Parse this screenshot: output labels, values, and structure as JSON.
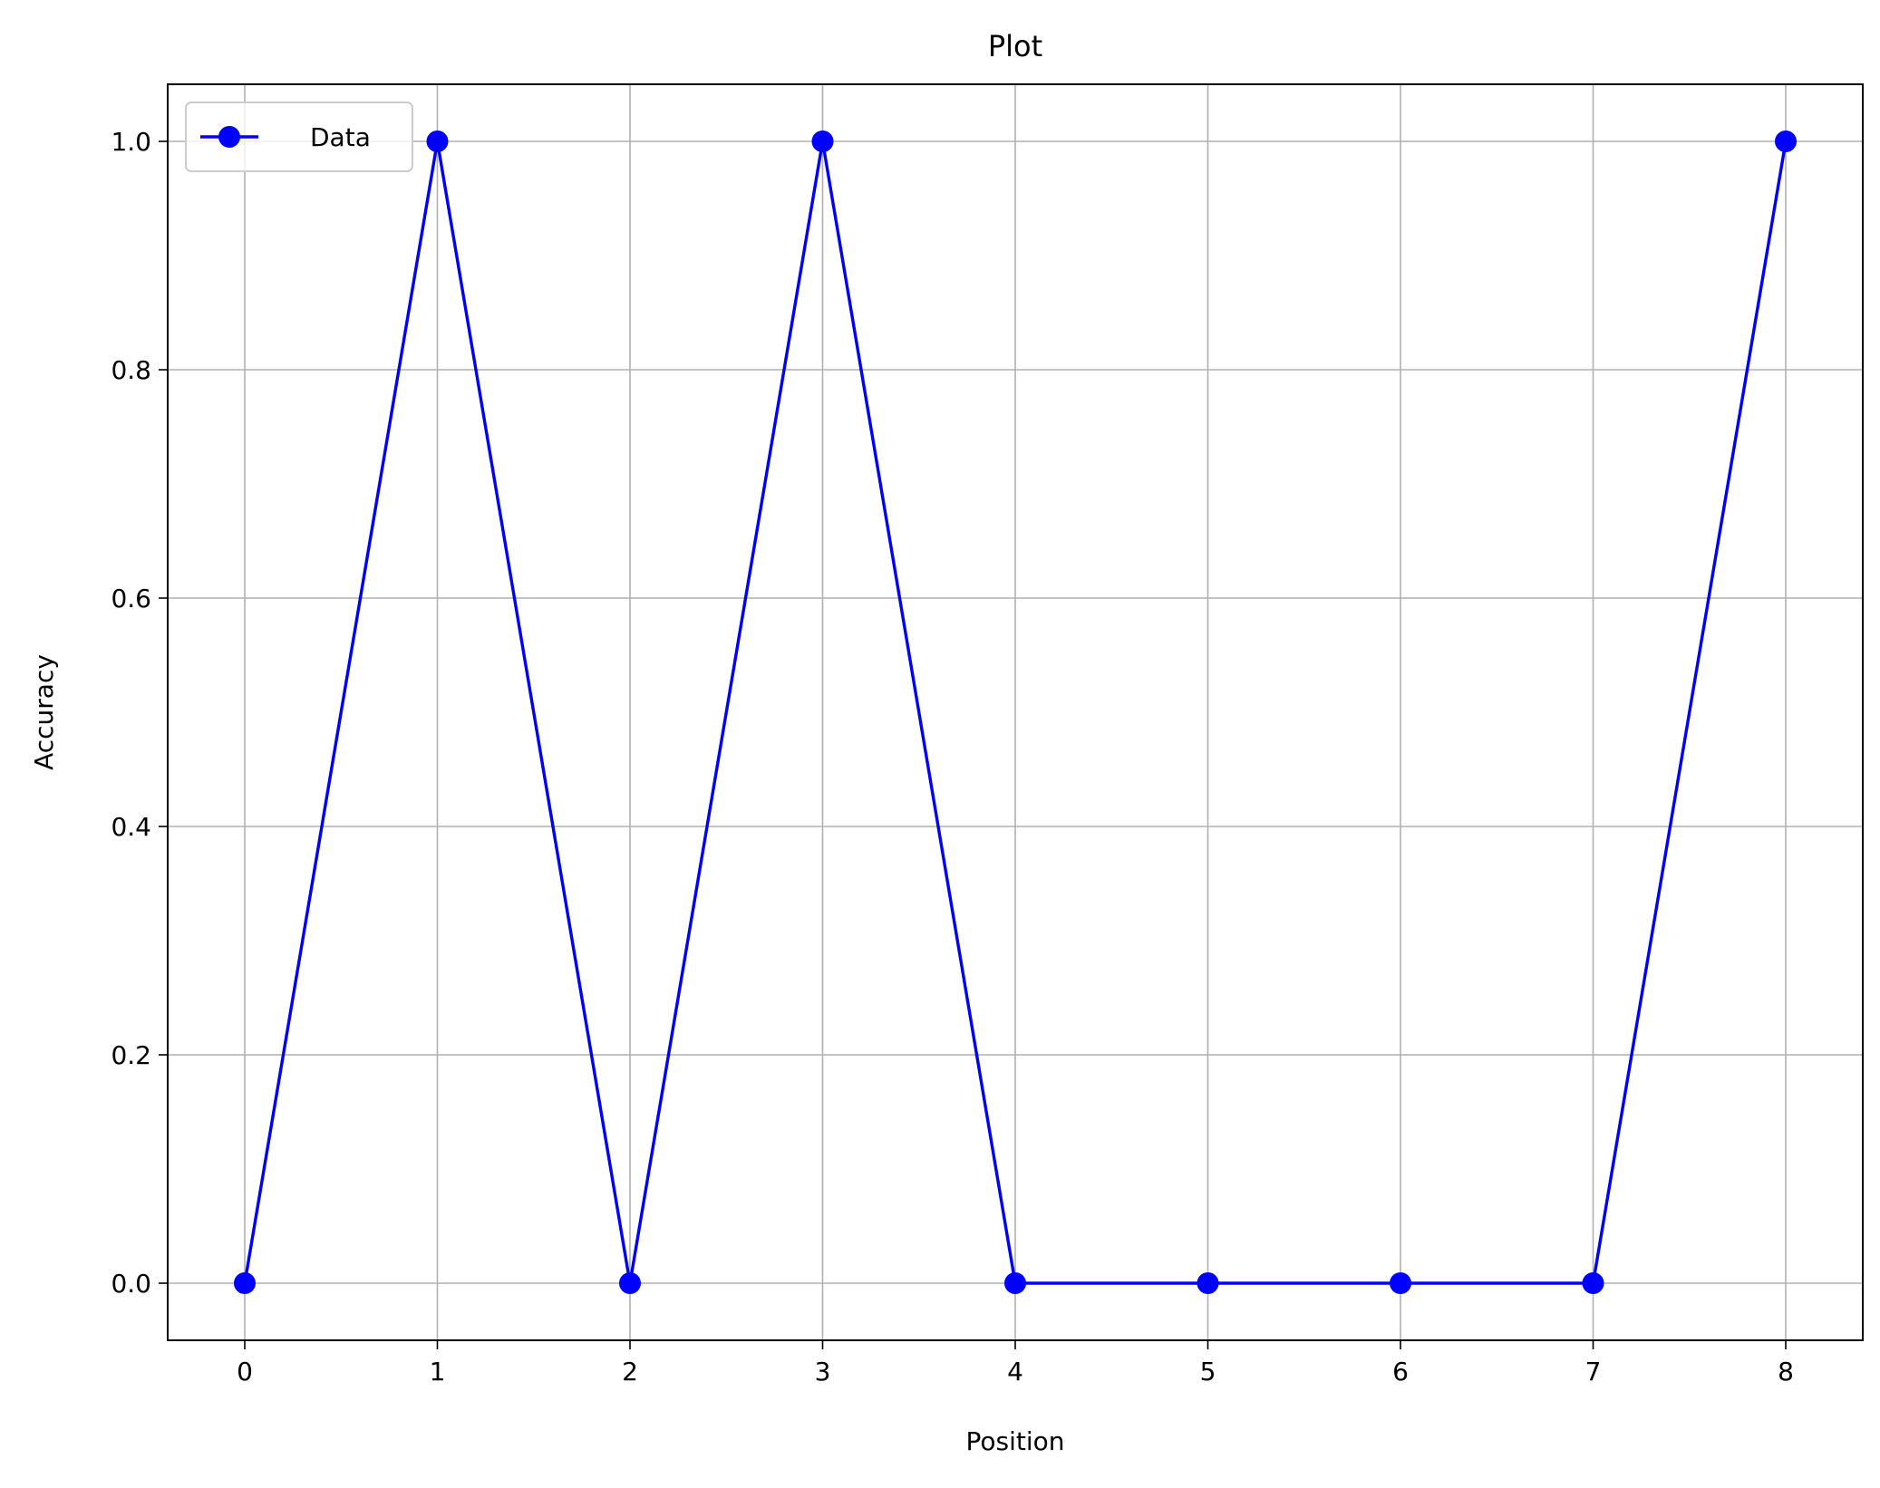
{
  "chart_data": {
    "type": "line",
    "title": "Plot",
    "xlabel": "Position",
    "ylabel": "Accuracy",
    "xlim": [
      -0.4,
      8.4
    ],
    "ylim": [
      -0.05,
      1.05
    ],
    "x_ticks": [
      0,
      1,
      2,
      3,
      4,
      5,
      6,
      7,
      8
    ],
    "x_tick_labels": [
      "0",
      "1",
      "2",
      "3",
      "4",
      "5",
      "6",
      "7",
      "8"
    ],
    "y_ticks": [
      0.0,
      0.2,
      0.4,
      0.6,
      0.8,
      1.0
    ],
    "y_tick_labels": [
      "0.0",
      "0.2",
      "0.4",
      "0.6",
      "0.8",
      "1.0"
    ],
    "grid": true,
    "legend_position": "upper-left",
    "series": [
      {
        "name": "Data",
        "color": "#0000ff",
        "marker": "circle",
        "x": [
          0,
          1,
          2,
          3,
          4,
          5,
          6,
          7,
          8
        ],
        "y": [
          0,
          1,
          0,
          1,
          0,
          0,
          0,
          0,
          1
        ]
      }
    ]
  }
}
